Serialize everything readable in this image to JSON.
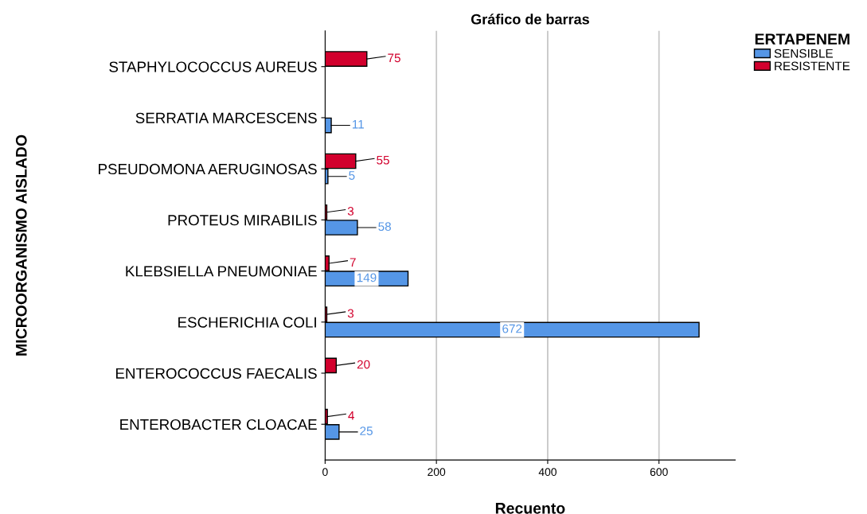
{
  "chart_data": {
    "type": "bar",
    "orientation": "horizontal",
    "title": "Gráfico de barras",
    "xlabel": "Recuento",
    "ylabel": "MICROORGANISMO AISLADO",
    "legend_title": "ERTAPENEM",
    "legend": "top right",
    "categories": [
      "STAPHYLOCOCCUS AUREUS",
      "SERRATIA MARCESCENS",
      "PSEUDOMONA AERUGINOSAS",
      "PROTEUS MIRABILIS",
      "KLEBSIELLA PNEUMONIAE",
      "ESCHERICHIA COLI",
      "ENTEROCOCCUS FAECALIS",
      "ENTEROBACTER CLOACAE"
    ],
    "series": [
      {
        "name": "SENSIBLE",
        "color": "#5596e6",
        "values": [
          null,
          11,
          5,
          58,
          149,
          672,
          null,
          25
        ]
      },
      {
        "name": "RESISTENTE",
        "color": "#d2002d",
        "values": [
          75,
          null,
          55,
          3,
          7,
          3,
          20,
          4
        ]
      }
    ],
    "xlim": [
      0,
      737
    ],
    "xticks": [
      0,
      200,
      400,
      600
    ],
    "grid": "x",
    "data_labels": true
  }
}
